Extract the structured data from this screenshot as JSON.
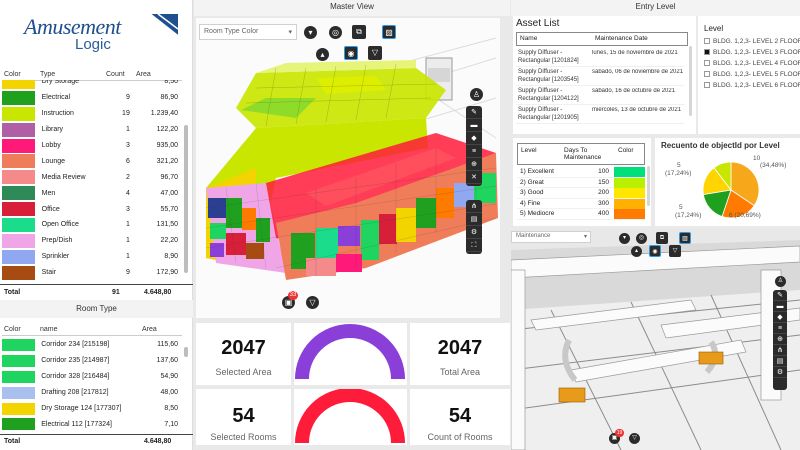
{
  "logo": {
    "brand_main": "Amusement",
    "brand_sub": "Logic"
  },
  "type_table": {
    "headers": {
      "color": "Color",
      "type": "Type",
      "count": "Count",
      "area": "Area"
    },
    "rows": [
      {
        "color": "#f3d400",
        "type": "Dry Storage",
        "count": "",
        "area": "8,50"
      },
      {
        "color": "#1fa11f",
        "type": "Electrical",
        "count": "9",
        "area": "86,90"
      },
      {
        "color": "#c9e600",
        "type": "Instruction",
        "count": "19",
        "area": "1.239,40"
      },
      {
        "color": "#b05fa6",
        "type": "Library",
        "count": "1",
        "area": "122,20"
      },
      {
        "color": "#ff1a7a",
        "type": "Lobby",
        "count": "3",
        "area": "935,00"
      },
      {
        "color": "#f07d5a",
        "type": "Lounge",
        "count": "6",
        "area": "321,20"
      },
      {
        "color": "#f48a8a",
        "type": "Media Review",
        "count": "2",
        "area": "96,70"
      },
      {
        "color": "#2e8b57",
        "type": "Men",
        "count": "4",
        "area": "47,00"
      },
      {
        "color": "#d81f3a",
        "type": "Office",
        "count": "3",
        "area": "55,70"
      },
      {
        "color": "#1adc8a",
        "type": "Open Office",
        "count": "1",
        "area": "131,50"
      },
      {
        "color": "#f0a6e6",
        "type": "Prep/Dish",
        "count": "1",
        "area": "22,20"
      },
      {
        "color": "#8fa8f0",
        "type": "Sprinkler",
        "count": "1",
        "area": "8,90"
      },
      {
        "color": "#a64b12",
        "type": "Stair",
        "count": "9",
        "area": "172,90"
      },
      {
        "color": "#f5b52a",
        "type": "Storage",
        "count": "2",
        "area": "16,60"
      }
    ],
    "total_label": "Total",
    "total_count": "91",
    "total_area": "4.648,80"
  },
  "room_table": {
    "title": "Room Type",
    "headers": {
      "color": "Color",
      "name": "name",
      "area": "Area"
    },
    "rows": [
      {
        "color": "#1fd45f",
        "name": "Corridor 234 [215198]",
        "area": "115,60"
      },
      {
        "color": "#1fd45f",
        "name": "Corridor 235 [214987]",
        "area": "137,60"
      },
      {
        "color": "#1fd45f",
        "name": "Corridor 328 [216484]",
        "area": "54,90"
      },
      {
        "color": "#a8bff0",
        "name": "Drafting 208 [217812]",
        "area": "48,00"
      },
      {
        "color": "#f3d400",
        "name": "Dry Storage 124 [177307]",
        "area": "8,50"
      },
      {
        "color": "#1fa11f",
        "name": "Electrical 112 [177324]",
        "area": "7,10"
      },
      {
        "color": "#1fa11f",
        "name": "Electrical 118 [177317]",
        "area": "17,40"
      }
    ],
    "total_label": "Total",
    "total_area": "4.648,80"
  },
  "master": {
    "title": "Master View",
    "dropdown": "Room Type Color",
    "badge": "33"
  },
  "kpis": [
    {
      "value": "2047",
      "label": "Selected Area"
    },
    {
      "value": "2047",
      "label": "Total Area"
    },
    {
      "value": "54",
      "label": "Selected Rooms"
    },
    {
      "value": "54",
      "label": "Count of Rooms"
    }
  ],
  "gauges": {
    "top_color": "#8a3fd9",
    "bottom_color": "#ff1b3a"
  },
  "entry": {
    "title": "Entry Level",
    "asset_list_title": "Asset List",
    "asset_headers": {
      "name": "Name",
      "date": "Maintenance Date"
    },
    "assets": [
      {
        "name": "Supply Diffuser - Rectangular [1201824]",
        "date": "lunes, 15 de noviembre de 2021"
      },
      {
        "name": "Supply Diffuser - Rectangular [1203545]",
        "date": "sábado, 06 de noviembre de 2021"
      },
      {
        "name": "Supply Diffuser - Rectangular [1204122]",
        "date": "sábado, 16 de octubre de 2021"
      },
      {
        "name": "Supply Diffuser - Rectangular [1201905]",
        "date": "miércoles, 13 de octubre de 2021"
      }
    ],
    "level_title": "Level",
    "levels": [
      {
        "label": "BLDG. 1,2,3- LEVEL 2 FLOOR",
        "checked": false
      },
      {
        "label": "BLDG. 1,2,3- LEVEL 3 FLOOR",
        "checked": true
      },
      {
        "label": "BLDG. 1,2,3- LEVEL 4 FLOOR",
        "checked": false
      },
      {
        "label": "BLDG. 1,2,3- LEVEL 5 FLOOR",
        "checked": false
      },
      {
        "label": "BLDG. 1,2,3- LEVEL 6 FLOOR",
        "checked": false
      }
    ],
    "cond_headers": {
      "level": "Level",
      "days": "Days To Maintenance",
      "color": "Color"
    },
    "conditions": [
      {
        "level": "1) Excellent",
        "days": "100",
        "color": "#00e07a"
      },
      {
        "level": "2) Great",
        "days": "150",
        "color": "#b9f000"
      },
      {
        "level": "3) Good",
        "days": "200",
        "color": "#ffe600"
      },
      {
        "level": "4) Fine",
        "days": "300",
        "color": "#ffb000"
      },
      {
        "level": "5) Mediocre",
        "days": "400",
        "color": "#ff7a00"
      }
    ],
    "pie_title": "Recuento de objectId por Level",
    "pie_labels": [
      {
        "text": "10"
      },
      {
        "text": "(34,48%)"
      },
      {
        "text": "5"
      },
      {
        "text": "(17,24%)"
      },
      {
        "text": "5"
      },
      {
        "text": "(17,24%)"
      },
      {
        "text": "6 (20,69%)"
      }
    ],
    "viewer_dropdown": "Maintenance",
    "viewer_badge": "19"
  },
  "chart_data": {
    "type": "pie",
    "title": "Recuento de objectId por Level",
    "slices": [
      {
        "value": 10,
        "percent": 34.48,
        "color": "#f6a81a"
      },
      {
        "value": 6,
        "percent": 20.69,
        "color": "#ff7a00"
      },
      {
        "value": 5,
        "percent": 17.24,
        "color": "#1fa11f"
      },
      {
        "value": 5,
        "percent": 17.24,
        "color": "#ffd400"
      },
      {
        "value": 3,
        "percent": 10.35,
        "color": "#c9e600"
      }
    ]
  }
}
